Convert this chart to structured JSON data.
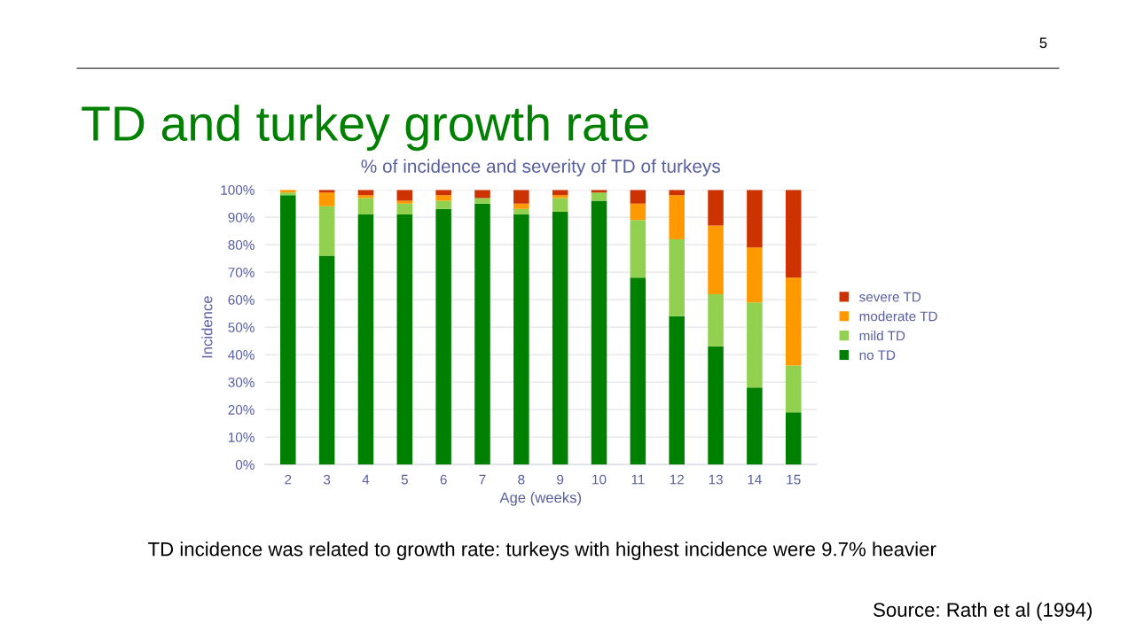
{
  "chart_data": {
    "type": "bar",
    "stacked": true,
    "title": "TD and turkey growth rate",
    "subtitle": "% of incidence and severity of TD of turkeys",
    "xlabel": "Age (weeks)",
    "ylabel": "Incidence",
    "categories": [
      "2",
      "3",
      "4",
      "5",
      "6",
      "7",
      "8",
      "9",
      "10",
      "11",
      "12",
      "13",
      "14",
      "15"
    ],
    "series": [
      {
        "name": "no TD",
        "color": "#008000",
        "values": [
          98,
          76,
          91,
          91,
          93,
          95,
          91,
          92,
          96,
          68,
          54,
          43,
          28,
          19
        ]
      },
      {
        "name": "mild TD",
        "color": "#92d050",
        "values": [
          1,
          18,
          6,
          4,
          3,
          2,
          2,
          5,
          3,
          21,
          28,
          19,
          31,
          17
        ]
      },
      {
        "name": "moderate TD",
        "color": "#ff9900",
        "values": [
          1,
          5,
          1,
          1,
          2,
          0,
          2,
          1,
          0,
          6,
          16,
          25,
          20,
          32
        ]
      },
      {
        "name": "severe TD",
        "color": "#cc3300",
        "values": [
          0,
          1,
          2,
          4,
          2,
          3,
          5,
          2,
          1,
          5,
          2,
          13,
          21,
          32
        ]
      }
    ],
    "ylim": [
      0,
      100
    ],
    "yticks": [
      {
        "value": 0,
        "label": "0%"
      },
      {
        "value": 10,
        "label": "10%"
      },
      {
        "value": 20,
        "label": "20%"
      },
      {
        "value": 30,
        "label": "30%"
      },
      {
        "value": 40,
        "label": "40%"
      },
      {
        "value": 50,
        "label": "50%"
      },
      {
        "value": 60,
        "label": "60%"
      },
      {
        "value": 70,
        "label": "70%"
      },
      {
        "value": 80,
        "label": "80%"
      },
      {
        "value": 90,
        "label": "90%"
      },
      {
        "value": 100,
        "label": "100%"
      }
    ],
    "grid": "y",
    "legend": "right",
    "annotations": [
      "5",
      "TD incidence was related to growth rate: turkeys with highest incidence were 9.7% heavier",
      "Source: Rath et al (1994)"
    ]
  }
}
